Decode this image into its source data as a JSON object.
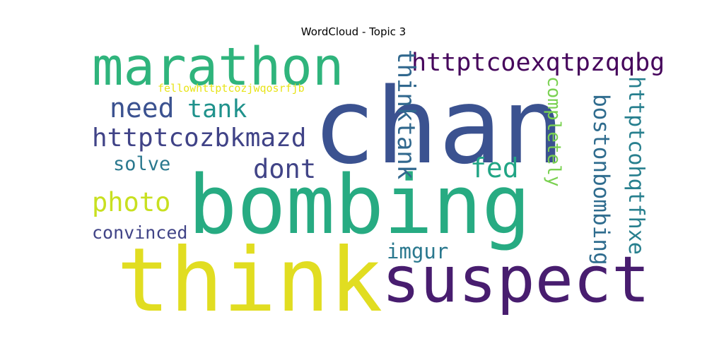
{
  "chart_data": {
    "type": "wordcloud",
    "title": "WordCloud - Topic 3",
    "words": [
      {
        "text": "chan",
        "color": "#3b5290",
        "orientation": "horizontal"
      },
      {
        "text": "bombing",
        "color": "#27ab82",
        "orientation": "horizontal"
      },
      {
        "text": "think",
        "color": "#e1dd21",
        "orientation": "horizontal"
      },
      {
        "text": "suspect",
        "color": "#481d6f",
        "orientation": "horizontal"
      },
      {
        "text": "marathon",
        "color": "#2fb47c",
        "orientation": "horizontal"
      },
      {
        "text": "httptcoexqtpzqqbg",
        "color": "#46065c",
        "orientation": "horizontal"
      },
      {
        "text": "need",
        "color": "#3b5290",
        "orientation": "horizontal"
      },
      {
        "text": "tank",
        "color": "#20928c",
        "orientation": "horizontal"
      },
      {
        "text": "httptcozbkmazd",
        "color": "#404387",
        "orientation": "horizontal"
      },
      {
        "text": "dont",
        "color": "#414487",
        "orientation": "horizontal"
      },
      {
        "text": "solve",
        "color": "#2a788e",
        "orientation": "horizontal"
      },
      {
        "text": "fed",
        "color": "#21a585",
        "orientation": "horizontal"
      },
      {
        "text": "photo",
        "color": "#c8e020",
        "orientation": "horizontal"
      },
      {
        "text": "convinced",
        "color": "#414487",
        "orientation": "horizontal"
      },
      {
        "text": "imgur",
        "color": "#2a788e",
        "orientation": "horizontal"
      },
      {
        "text": "fellowhttptcozjwqosrfjb",
        "color": "#e8e419",
        "orientation": "horizontal"
      },
      {
        "text": "thinktank",
        "color": "#31688e",
        "orientation": "vertical"
      },
      {
        "text": "completely",
        "color": "#7ad151",
        "orientation": "vertical"
      },
      {
        "text": "bostonbombing",
        "color": "#2f6c8e",
        "orientation": "vertical"
      },
      {
        "text": "httptcohqtfhxe",
        "color": "#277f8e",
        "orientation": "vertical"
      }
    ]
  }
}
